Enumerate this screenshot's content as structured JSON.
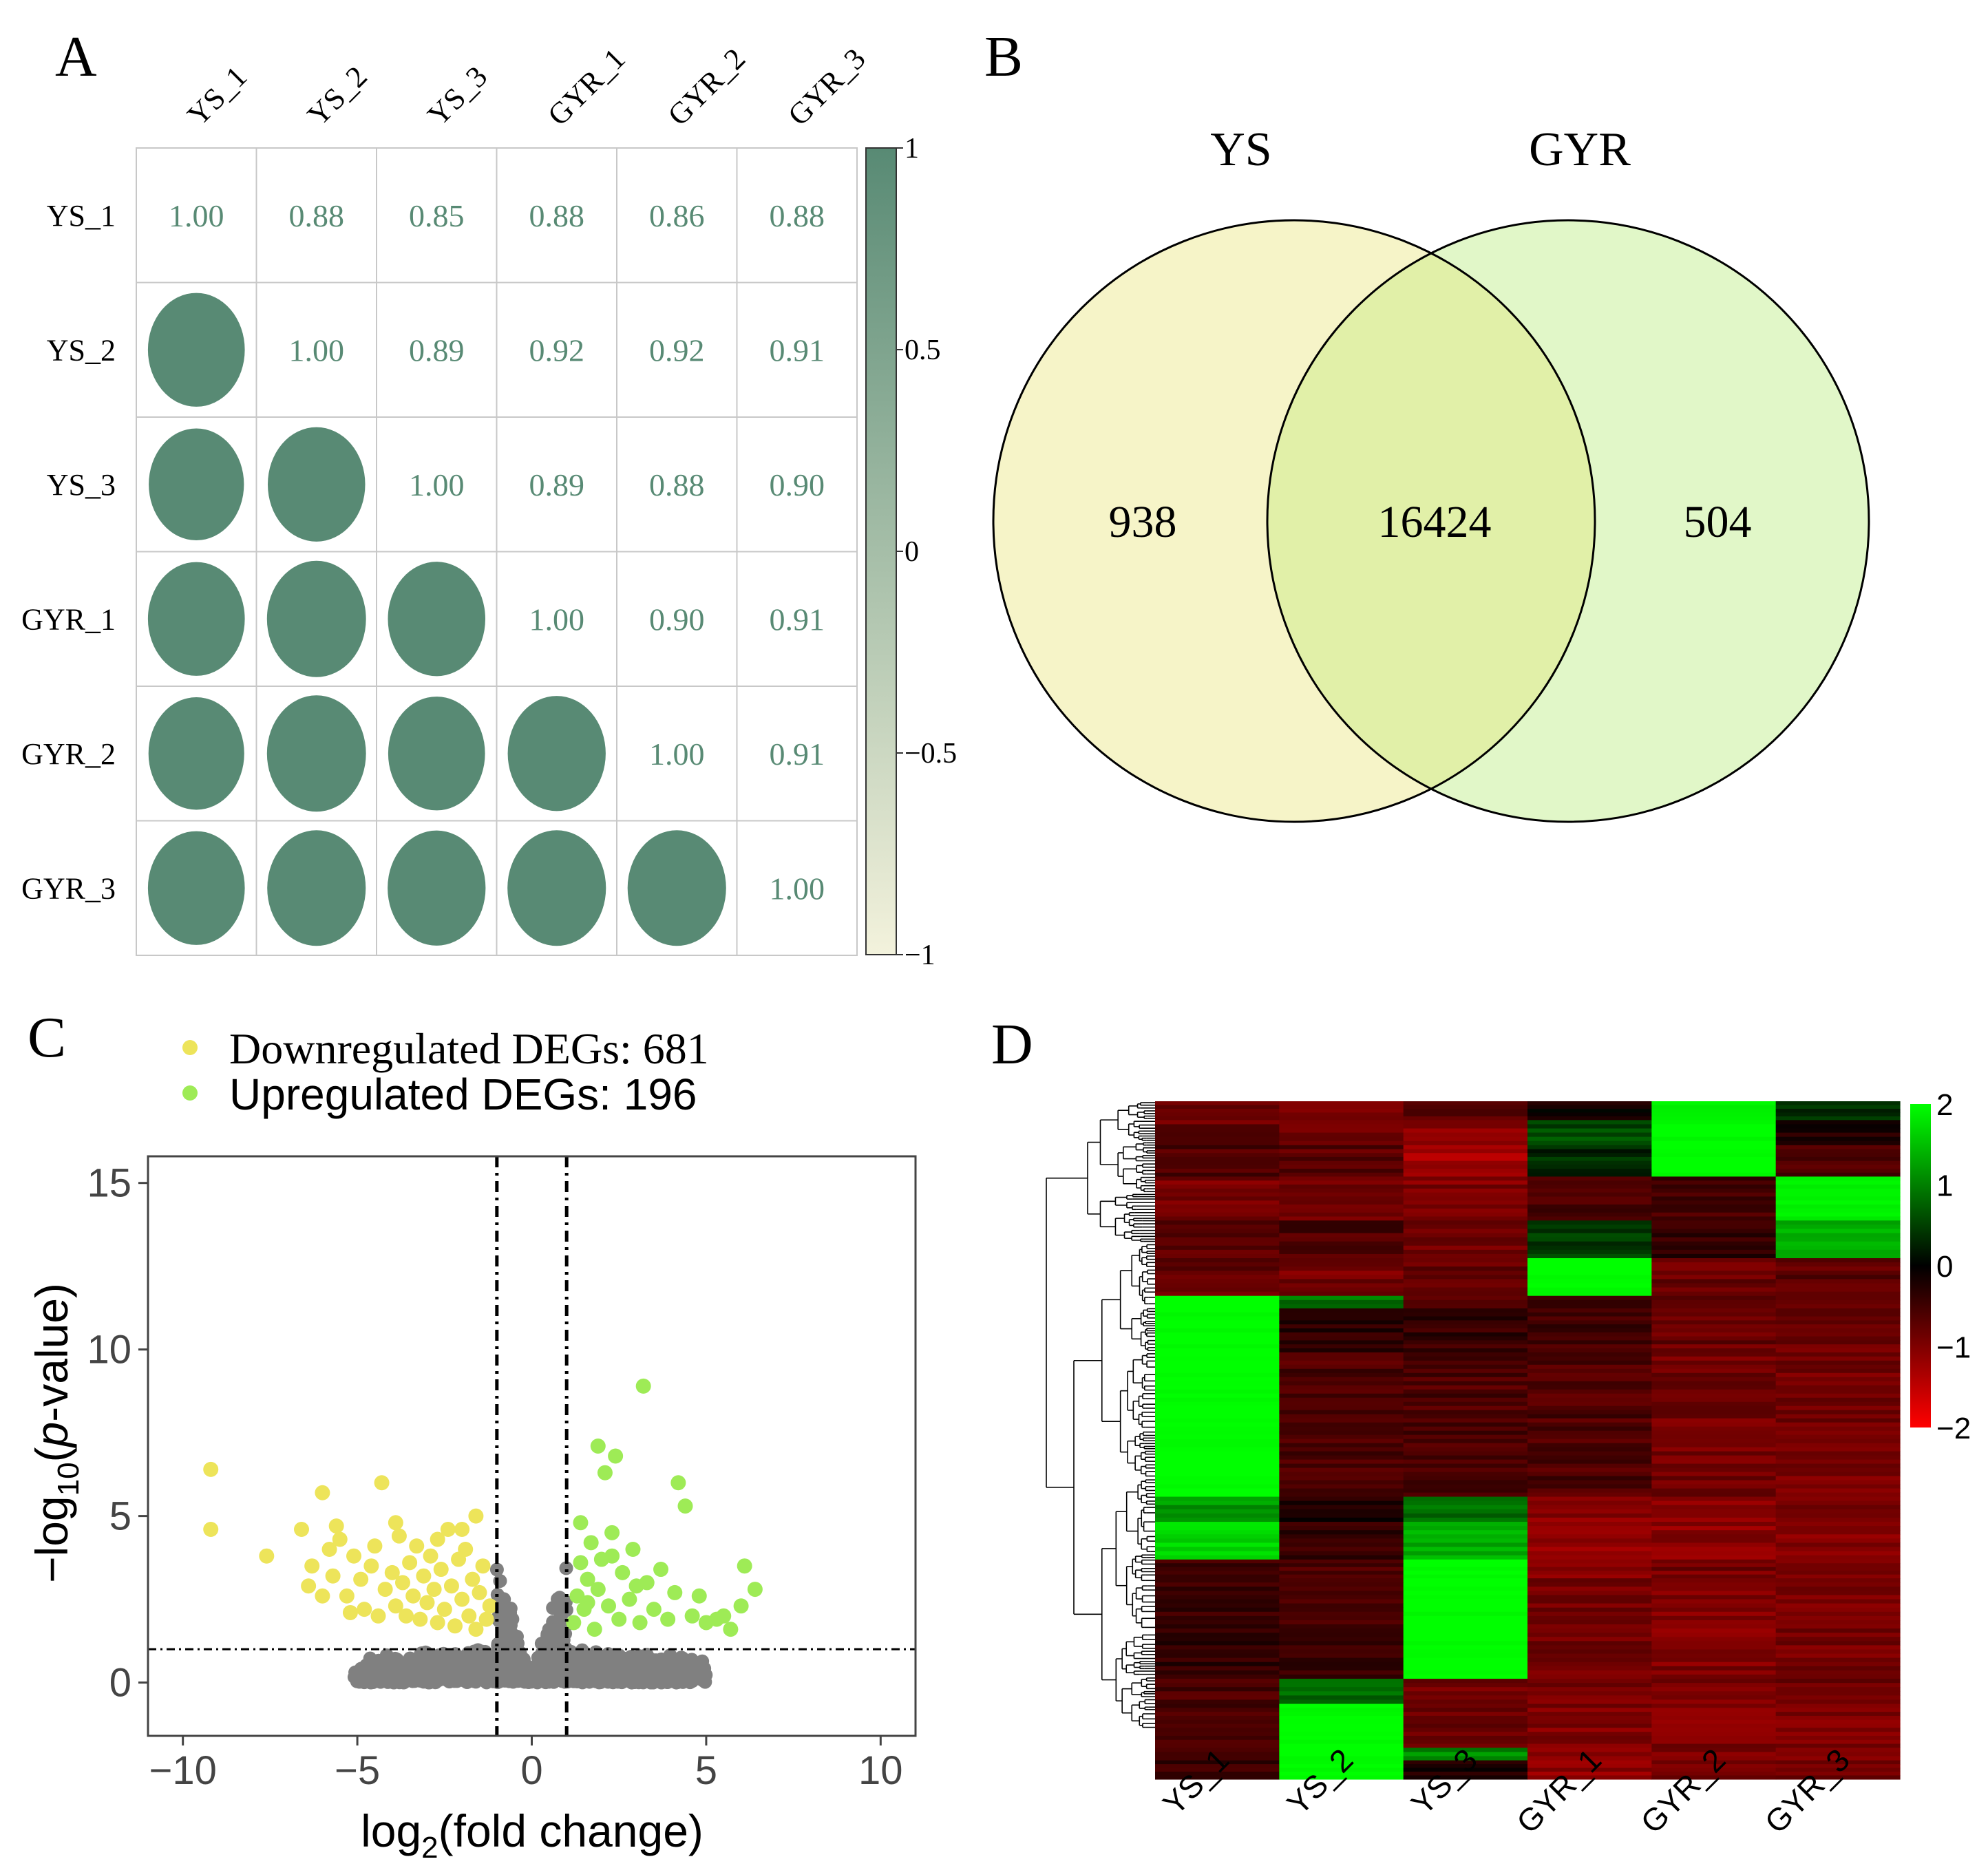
{
  "panels": {
    "a": "A",
    "b": "B",
    "c": "C",
    "d": "D"
  },
  "colors": {
    "corr": "#588a74",
    "corr_light": "#f3f2dc",
    "grid": "#c8c8c8",
    "ys": "#f6f4c8",
    "gyr": "#e1f7c8",
    "overlap": "#e1f0a8",
    "down": "#ede45a",
    "up": "#9eeb56",
    "ns": "#808080",
    "heat_hi": "#00ff00",
    "heat_mid": "#000000",
    "heat_lo": "#ff0000"
  },
  "chart_data": [
    {
      "type": "heatmap",
      "subtype": "correlation-matrix",
      "samples": [
        "YS_1",
        "YS_2",
        "YS_3",
        "GYR_1",
        "GYR_2",
        "GYR_3"
      ],
      "matrix": [
        [
          1.0,
          0.88,
          0.85,
          0.88,
          0.86,
          0.88
        ],
        [
          0.88,
          1.0,
          0.89,
          0.92,
          0.92,
          0.91
        ],
        [
          0.85,
          0.89,
          1.0,
          0.89,
          0.88,
          0.9
        ],
        [
          0.88,
          0.92,
          0.89,
          1.0,
          0.9,
          0.91
        ],
        [
          0.86,
          0.92,
          0.88,
          0.9,
          1.0,
          0.91
        ],
        [
          0.88,
          0.91,
          0.9,
          0.91,
          0.91,
          1.0
        ]
      ],
      "upper_labels": [
        [
          "1.00",
          "0.88",
          "0.85",
          "0.88",
          "0.86",
          "0.88"
        ],
        [
          "",
          "1.00",
          "0.89",
          "0.92",
          "0.92",
          "0.91"
        ],
        [
          "",
          "",
          "1.00",
          "0.89",
          "0.88",
          "0.90"
        ],
        [
          "",
          "",
          "",
          "1.00",
          "0.90",
          "0.91"
        ],
        [
          "",
          "",
          "",
          "",
          "1.00",
          "0.91"
        ],
        [
          "",
          "",
          "",
          "",
          "",
          "1.00"
        ]
      ],
      "colorbar": {
        "min": -1,
        "max": 1,
        "ticks": [
          "1",
          "0.5",
          "0",
          "−0.5",
          "−1"
        ]
      }
    },
    {
      "type": "venn",
      "sets": [
        "YS",
        "GYR"
      ],
      "ys_only": "938",
      "intersection": "16424",
      "gyr_only": "504"
    },
    {
      "type": "scatter",
      "subtype": "volcano",
      "legend": [
        "Downregulated DEGs: 681",
        "Upregulated DEGs: 196"
      ],
      "xlabel_main": "log",
      "xlabel_sub": "2",
      "xlabel_rest": "(fold change)",
      "ylabel_main": "−log",
      "ylabel_sub": "10",
      "ylabel_open": "(",
      "ylabel_italic": "p",
      "ylabel_rest": "-value)",
      "xlim": [
        -11,
        11
      ],
      "ylim": [
        -1.6,
        15.8
      ],
      "xticks": [
        -10,
        -5,
        0,
        5,
        10
      ],
      "xtick_labels": [
        "−10",
        "−5",
        "0",
        "5",
        "10"
      ],
      "yticks": [
        0,
        5,
        10,
        15
      ],
      "ytick_labels": [
        "0",
        "5",
        "10",
        "15"
      ],
      "thresholds": {
        "fold_change": [
          -1,
          1
        ],
        "neg_log10_p": 1
      },
      "down_points": [
        [
          -9.2,
          6.4
        ],
        [
          -9.2,
          4.6
        ],
        [
          -7.6,
          3.8
        ],
        [
          -6.6,
          4.6
        ],
        [
          -6.0,
          5.7
        ],
        [
          -6.3,
          3.5
        ],
        [
          -5.8,
          4.0
        ],
        [
          -5.7,
          3.2
        ],
        [
          -5.5,
          4.3
        ],
        [
          -5.3,
          2.6
        ],
        [
          -5.1,
          3.8
        ],
        [
          -4.9,
          3.1
        ],
        [
          -4.8,
          2.2
        ],
        [
          -4.6,
          3.5
        ],
        [
          -4.5,
          4.1
        ],
        [
          -4.3,
          6.0
        ],
        [
          -4.2,
          2.8
        ],
        [
          -4.0,
          3.3
        ],
        [
          -3.9,
          2.3
        ],
        [
          -3.8,
          4.4
        ],
        [
          -3.7,
          3.0
        ],
        [
          -3.6,
          2.0
        ],
        [
          -3.5,
          3.6
        ],
        [
          -3.4,
          2.6
        ],
        [
          -3.3,
          4.1
        ],
        [
          -3.2,
          1.9
        ],
        [
          -3.1,
          3.2
        ],
        [
          -3.0,
          2.4
        ],
        [
          -2.9,
          3.8
        ],
        [
          -2.8,
          2.8
        ],
        [
          -2.7,
          1.8
        ],
        [
          -2.6,
          3.4
        ],
        [
          -2.5,
          2.2
        ],
        [
          -2.4,
          4.6
        ],
        [
          -2.3,
          2.9
        ],
        [
          -2.2,
          1.7
        ],
        [
          -2.1,
          3.7
        ],
        [
          -2.0,
          2.5
        ],
        [
          -1.9,
          4.0
        ],
        [
          -1.8,
          2.0
        ],
        [
          -1.7,
          3.1
        ],
        [
          -1.6,
          1.6
        ],
        [
          -1.5,
          2.7
        ],
        [
          -1.4,
          3.5
        ],
        [
          -1.3,
          1.9
        ],
        [
          -1.2,
          2.3
        ],
        [
          -1.6,
          5.0
        ],
        [
          -2.0,
          4.6
        ],
        [
          -2.7,
          4.3
        ],
        [
          -4.4,
          2.0
        ],
        [
          -5.2,
          2.1
        ],
        [
          -6.0,
          2.6
        ],
        [
          -6.4,
          2.9
        ],
        [
          -3.9,
          4.8
        ],
        [
          -5.6,
          4.7
        ]
      ],
      "up_points": [
        [
          1.2,
          1.8
        ],
        [
          1.3,
          2.6
        ],
        [
          1.4,
          3.6
        ],
        [
          1.4,
          4.8
        ],
        [
          1.5,
          2.2
        ],
        [
          1.6,
          3.1
        ],
        [
          1.7,
          4.2
        ],
        [
          1.8,
          1.6
        ],
        [
          1.9,
          2.8
        ],
        [
          1.9,
          7.1
        ],
        [
          2.0,
          3.7
        ],
        [
          2.1,
          6.3
        ],
        [
          2.2,
          2.3
        ],
        [
          2.3,
          4.5
        ],
        [
          2.4,
          6.8
        ],
        [
          2.5,
          1.9
        ],
        [
          2.6,
          3.3
        ],
        [
          2.8,
          2.5
        ],
        [
          2.9,
          4.0
        ],
        [
          3.1,
          1.8
        ],
        [
          3.2,
          8.9
        ],
        [
          3.3,
          3.0
        ],
        [
          3.5,
          2.2
        ],
        [
          3.7,
          3.4
        ],
        [
          3.9,
          1.9
        ],
        [
          4.1,
          2.7
        ],
        [
          4.2,
          6.0
        ],
        [
          4.4,
          5.3
        ],
        [
          4.6,
          2.0
        ],
        [
          4.8,
          2.6
        ],
        [
          5.0,
          1.8
        ],
        [
          5.3,
          1.9
        ],
        [
          5.5,
          2.0
        ],
        [
          5.7,
          1.6
        ],
        [
          6.1,
          3.5
        ],
        [
          6.4,
          2.8
        ],
        [
          6.0,
          2.3
        ],
        [
          3.0,
          2.9
        ],
        [
          2.3,
          3.8
        ],
        [
          1.6,
          2.4
        ]
      ],
      "ns_points_note": "dense gray cloud along |log2FC|<=1 near the baseline"
    },
    {
      "type": "heatmap",
      "subtype": "clustered-expression",
      "columns": [
        "YS_1",
        "YS_2",
        "YS_3",
        "GYR_1",
        "GYR_2",
        "GYR_3"
      ],
      "colorbar": {
        "min": -2,
        "max": 2,
        "ticks": [
          "2",
          "1",
          "0",
          "−1",
          "−2"
        ]
      },
      "row_blocks": [
        {
          "rows": 0.03,
          "values": [
            -0.7,
            -1.0,
            -0.6,
            -0.1,
            1.9,
            0.4
          ]
        },
        {
          "rows": 0.04,
          "values": [
            -0.8,
            -0.9,
            -1.1,
            0.6,
            2.0,
            -0.2
          ]
        },
        {
          "rows": 0.05,
          "values": [
            -0.6,
            -0.7,
            -1.3,
            0.3,
            2.0,
            -0.6
          ]
        },
        {
          "rows": 0.07,
          "values": [
            -0.9,
            -0.8,
            -1.0,
            -0.6,
            -0.5,
            1.9
          ]
        },
        {
          "rows": 0.06,
          "values": [
            -0.7,
            -0.6,
            -0.9,
            0.5,
            -0.4,
            1.3
          ]
        },
        {
          "rows": 0.06,
          "values": [
            -0.8,
            -0.9,
            -0.8,
            2.0,
            -0.8,
            -0.7
          ]
        },
        {
          "rows": 0.02,
          "values": [
            2.0,
            0.9,
            -0.6,
            -0.6,
            -0.8,
            -0.9
          ]
        },
        {
          "rows": 0.07,
          "values": [
            2.0,
            -0.3,
            -0.4,
            -0.5,
            -0.8,
            -0.8
          ]
        },
        {
          "rows": 0.23,
          "values": [
            2.0,
            -0.6,
            -0.6,
            -0.6,
            -0.9,
            -0.9
          ]
        },
        {
          "rows": 0.04,
          "values": [
            1.2,
            -0.2,
            0.8,
            -1.1,
            -1.1,
            -1.0
          ]
        },
        {
          "rows": 0.06,
          "values": [
            1.7,
            -0.4,
            1.4,
            -1.2,
            -1.1,
            -1.0
          ]
        },
        {
          "rows": 0.03,
          "values": [
            -0.5,
            -0.6,
            2.0,
            -1.0,
            -0.9,
            -1.0
          ]
        },
        {
          "rows": 0.16,
          "values": [
            -0.4,
            -0.5,
            2.0,
            -0.9,
            -1.0,
            -0.9
          ]
        },
        {
          "rows": 0.04,
          "values": [
            -0.6,
            0.8,
            -0.9,
            -0.9,
            -1.0,
            -0.9
          ]
        },
        {
          "rows": 0.07,
          "values": [
            -0.5,
            2.0,
            -0.8,
            -1.0,
            -1.0,
            -1.0
          ]
        },
        {
          "rows": 0.02,
          "values": [
            -0.5,
            2.0,
            1.1,
            -1.0,
            -1.0,
            -1.0
          ]
        },
        {
          "rows": 0.03,
          "values": [
            -0.4,
            2.0,
            -0.2,
            -1.1,
            -0.9,
            -0.9
          ]
        }
      ]
    }
  ]
}
